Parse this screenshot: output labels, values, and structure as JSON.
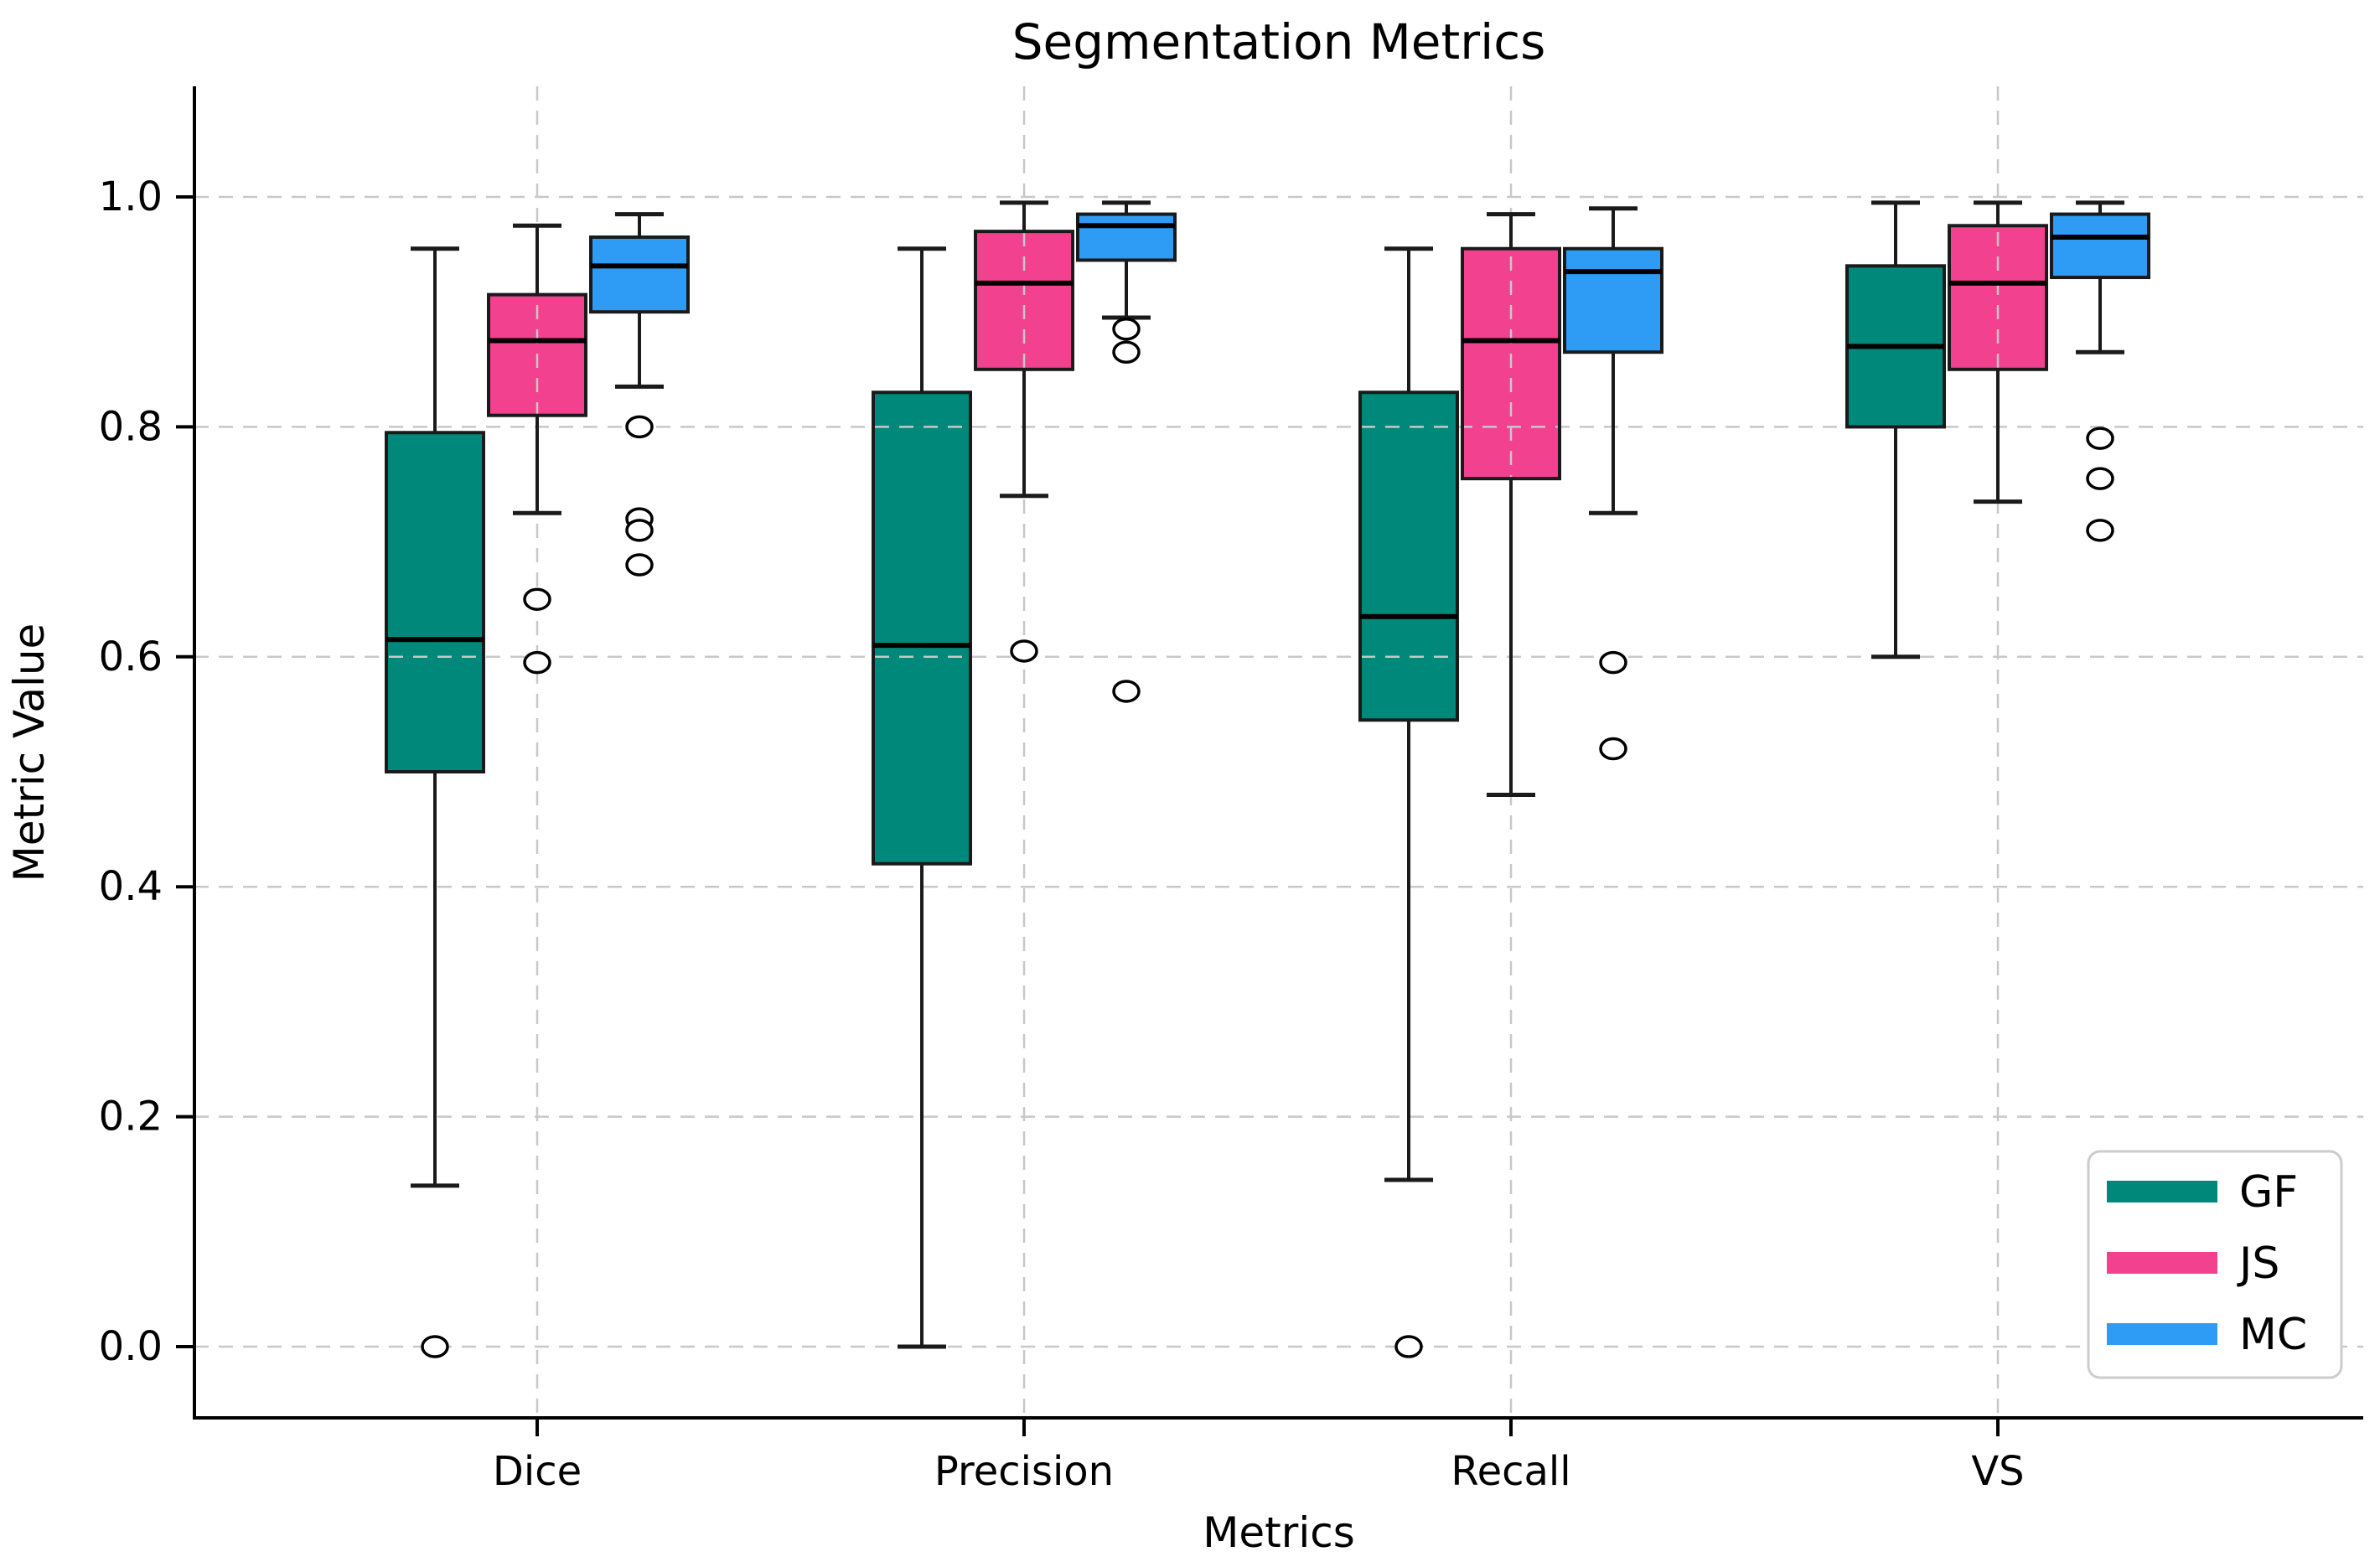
{
  "title": "Segmentation Metrics",
  "xlabel": "Metrics",
  "ylabel": "Metric Value",
  "legend": {
    "position": "lower right",
    "entries": [
      {
        "label": "GF",
        "color": "#00897B"
      },
      {
        "label": "JS",
        "color": "#F2418F"
      },
      {
        "label": "MC",
        "color": "#2E9BF5"
      }
    ]
  },
  "chart_data": {
    "type": "boxplot",
    "title": "Segmentation Metrics",
    "xlabel": "Metrics",
    "ylabel": "Metric Value",
    "categories": [
      "Dice",
      "Precision",
      "Recall",
      "VS"
    ],
    "y_ticks": [
      0.0,
      0.2,
      0.4,
      0.6,
      0.8,
      1.0
    ],
    "y_tick_labels": [
      "0.0",
      "0.2",
      "0.4",
      "0.6",
      "0.8",
      "1.0"
    ],
    "ylim": [
      -0.062,
      1.095
    ],
    "grid": "dashed gray, horizontal and vertical, drawn over boxes",
    "legend_position": "lower right",
    "colors": {
      "edge": "#1a1a1a",
      "median": "#000000",
      "grid": "#c8c8c8"
    },
    "series": [
      {
        "name": "GF",
        "color": "#00897B",
        "boxes": [
          {
            "category": "Dice",
            "whislo": 0.14,
            "q1": 0.5,
            "med": 0.615,
            "q3": 0.795,
            "whishi": 0.955,
            "fliers": [
              0.0
            ]
          },
          {
            "category": "Precision",
            "whislo": 0.0,
            "q1": 0.42,
            "med": 0.61,
            "q3": 0.83,
            "whishi": 0.955,
            "fliers": []
          },
          {
            "category": "Recall",
            "whislo": 0.145,
            "q1": 0.545,
            "med": 0.635,
            "q3": 0.83,
            "whishi": 0.955,
            "fliers": [
              0.0
            ]
          },
          {
            "category": "VS",
            "whislo": 0.6,
            "q1": 0.8,
            "med": 0.87,
            "q3": 0.94,
            "whishi": 0.995,
            "fliers": []
          }
        ]
      },
      {
        "name": "JS",
        "color": "#F2418F",
        "boxes": [
          {
            "category": "Dice",
            "whislo": 0.725,
            "q1": 0.81,
            "med": 0.875,
            "q3": 0.915,
            "whishi": 0.975,
            "fliers": [
              0.65,
              0.595
            ]
          },
          {
            "category": "Precision",
            "whislo": 0.74,
            "q1": 0.85,
            "med": 0.925,
            "q3": 0.97,
            "whishi": 0.995,
            "fliers": [
              0.605
            ]
          },
          {
            "category": "Recall",
            "whislo": 0.48,
            "q1": 0.755,
            "med": 0.875,
            "q3": 0.955,
            "whishi": 0.985,
            "fliers": []
          },
          {
            "category": "VS",
            "whislo": 0.735,
            "q1": 0.85,
            "med": 0.925,
            "q3": 0.975,
            "whishi": 0.995,
            "fliers": []
          }
        ]
      },
      {
        "name": "MC",
        "color": "#2E9BF5",
        "boxes": [
          {
            "category": "Dice",
            "whislo": 0.835,
            "q1": 0.9,
            "med": 0.94,
            "q3": 0.965,
            "whishi": 0.985,
            "fliers": [
              0.8,
              0.72,
              0.71,
              0.68
            ]
          },
          {
            "category": "Precision",
            "whislo": 0.895,
            "q1": 0.945,
            "med": 0.975,
            "q3": 0.985,
            "whishi": 0.995,
            "fliers": [
              0.885,
              0.865,
              0.57
            ]
          },
          {
            "category": "Recall",
            "whislo": 0.725,
            "q1": 0.865,
            "med": 0.935,
            "q3": 0.955,
            "whishi": 0.99,
            "fliers": [
              0.595,
              0.52
            ]
          },
          {
            "category": "VS",
            "whislo": 0.865,
            "q1": 0.93,
            "med": 0.965,
            "q3": 0.985,
            "whishi": 0.995,
            "fliers": [
              0.79,
              0.755,
              0.71
            ]
          }
        ]
      }
    ]
  }
}
